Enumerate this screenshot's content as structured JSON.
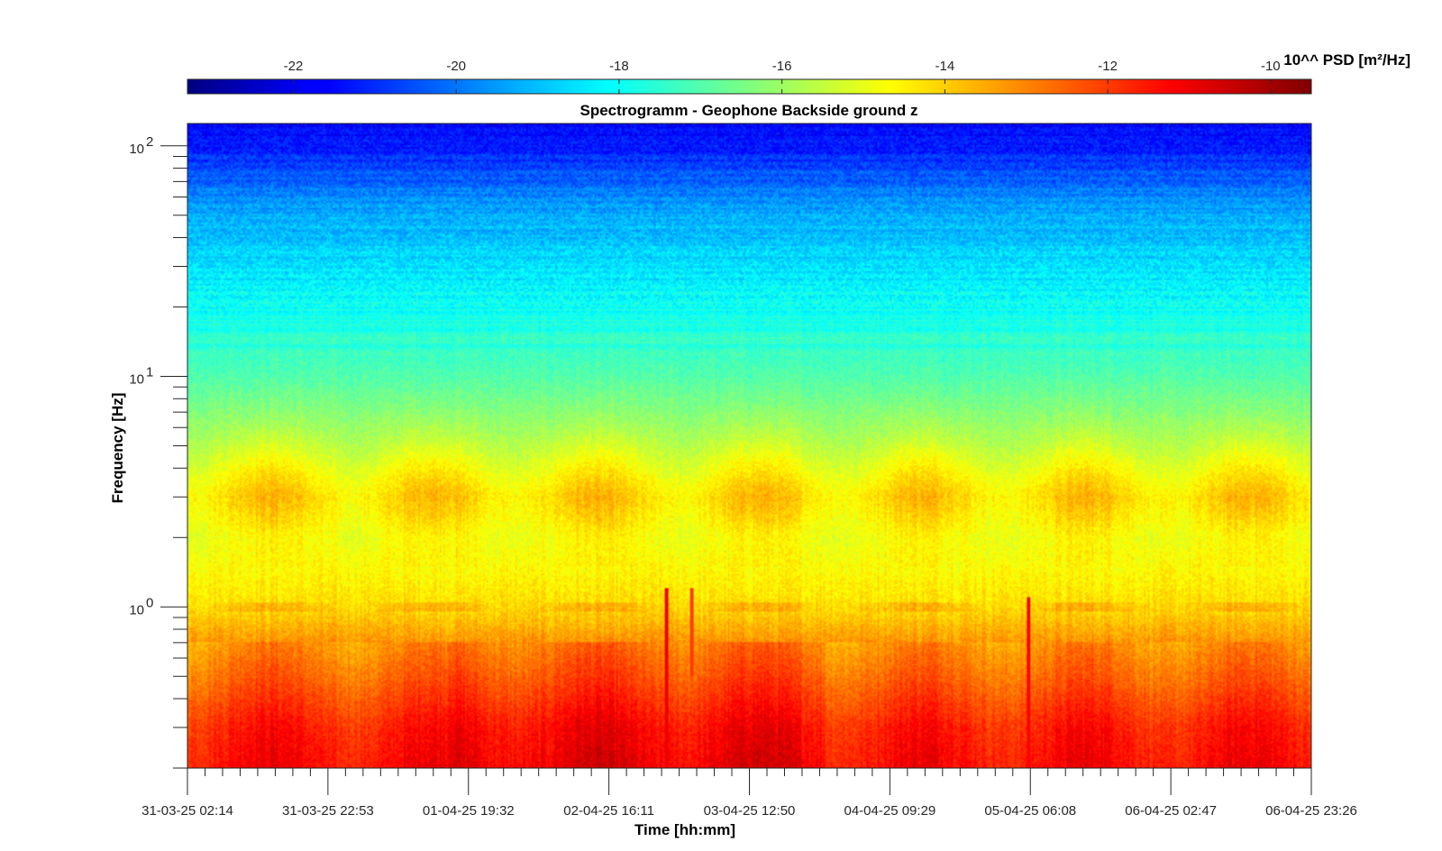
{
  "chart_data": {
    "type": "heatmap",
    "title": "Spectrogramm - Geophone Backside ground z",
    "xlabel": "Time [hh:mm]",
    "ylabel": "Frequency [Hz]",
    "x_ticklabels": [
      "31-03-25 02:14",
      "31-03-25 22:53",
      "01-04-25 19:32",
      "02-04-25 16:11",
      "03-04-25 12:50",
      "04-04-25 09:29",
      "05-04-25 06:08",
      "06-04-25 02:47",
      "06-04-25 23:26"
    ],
    "x_range": [
      "31-03-25 02:14",
      "06-04-25 23:26"
    ],
    "y_scale": "log",
    "y_range": [
      0.2,
      125
    ],
    "y_ticks": [
      {
        "value": 1,
        "base": "10",
        "exp": "0"
      },
      {
        "value": 10,
        "base": "10",
        "exp": "1"
      },
      {
        "value": 100,
        "base": "10",
        "exp": "2"
      }
    ],
    "colorbar": {
      "label": "10^^ PSD [m²/Hz]",
      "orientation": "horizontal",
      "position": "top",
      "range": [
        -23.3,
        -9.5
      ],
      "ticks": [
        "-22",
        "-20",
        "-18",
        "-16",
        "-14",
        "-12",
        "-10"
      ],
      "colormap": "jet"
    },
    "psd_profile_log10": [
      {
        "freq_hz": 0.2,
        "psd": -11.3
      },
      {
        "freq_hz": 0.3,
        "psd": -11.6
      },
      {
        "freq_hz": 0.5,
        "psd": -12.6
      },
      {
        "freq_hz": 0.7,
        "psd": -13.2
      },
      {
        "freq_hz": 1.0,
        "psd": -14.2
      },
      {
        "freq_hz": 2.0,
        "psd": -15.0
      },
      {
        "freq_hz": 3.0,
        "psd": -14.6
      },
      {
        "freq_hz": 5.0,
        "psd": -15.7
      },
      {
        "freq_hz": 10.0,
        "psd": -17.0
      },
      {
        "freq_hz": 20.0,
        "psd": -18.0
      },
      {
        "freq_hz": 50.0,
        "psd": -19.2
      },
      {
        "freq_hz": 100.0,
        "psd": -21.3
      },
      {
        "freq_hz": 125.0,
        "psd": -21.6
      }
    ],
    "events": [
      {
        "time": "03-04-25 00:30",
        "freq_range_hz": [
          0.2,
          1.2
        ],
        "psd": -11.0
      },
      {
        "time": "03-04-25 04:10",
        "freq_range_hz": [
          0.5,
          1.2
        ],
        "psd": -12.0
      },
      {
        "time": "05-04-25 05:40",
        "freq_range_hz": [
          0.2,
          1.1
        ],
        "psd": -11.2
      }
    ]
  }
}
